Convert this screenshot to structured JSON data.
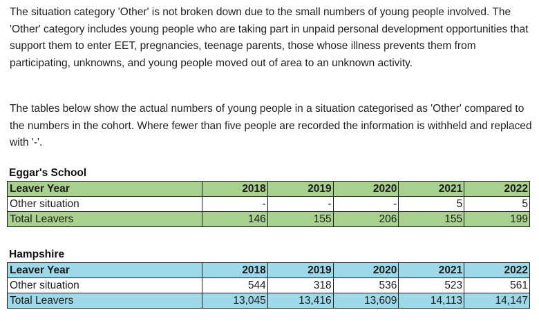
{
  "intro": {
    "paragraph1": "The situation category 'Other' is not broken down due to the small numbers of young people involved. The 'Other' category includes young people who are  taking part in unpaid personal development opportunities that support them to enter EET, pregnancies, teenage parents, those whose illness prevents them from participating, unknowns, and young people moved out of area to an unknown activity.",
    "paragraph2": "The tables below show the actual numbers of young people in a situation categorised as 'Other' compared to the numbers in the cohort. Where fewer than five people are recorded the information is withheld and replaced with '-'."
  },
  "tables": [
    {
      "title": "Eggar's School",
      "header_label": "Leaver Year",
      "years": [
        "2018",
        "2019",
        "2020",
        "2021",
        "2022"
      ],
      "rows": [
        {
          "label": "Other situation",
          "values": [
            "-",
            "-",
            "-",
            "5",
            "5"
          ]
        },
        {
          "label": "Total Leavers",
          "values": [
            "146",
            "155",
            "206",
            "155",
            "199"
          ]
        }
      ],
      "header_color": "#a9d18e"
    },
    {
      "title": "Hampshire",
      "header_label": "Leaver Year",
      "years": [
        "2018",
        "2019",
        "2020",
        "2021",
        "2022"
      ],
      "rows": [
        {
          "label": "Other situation",
          "values": [
            "544",
            "318",
            "536",
            "523",
            "561"
          ]
        },
        {
          "label": "Total Leavers",
          "values": [
            "13,045",
            "13,416",
            "13,609",
            "14,113",
            "14,147"
          ]
        }
      ],
      "header_color": "#9dd9e8"
    }
  ]
}
